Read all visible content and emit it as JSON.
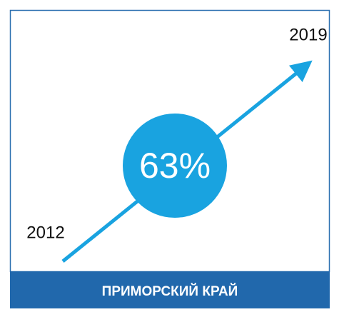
{
  "start_label": "2012",
  "end_label": "2019",
  "growth": "63%",
  "region": "ПРИМОРСКИЙ КРАЙ"
}
